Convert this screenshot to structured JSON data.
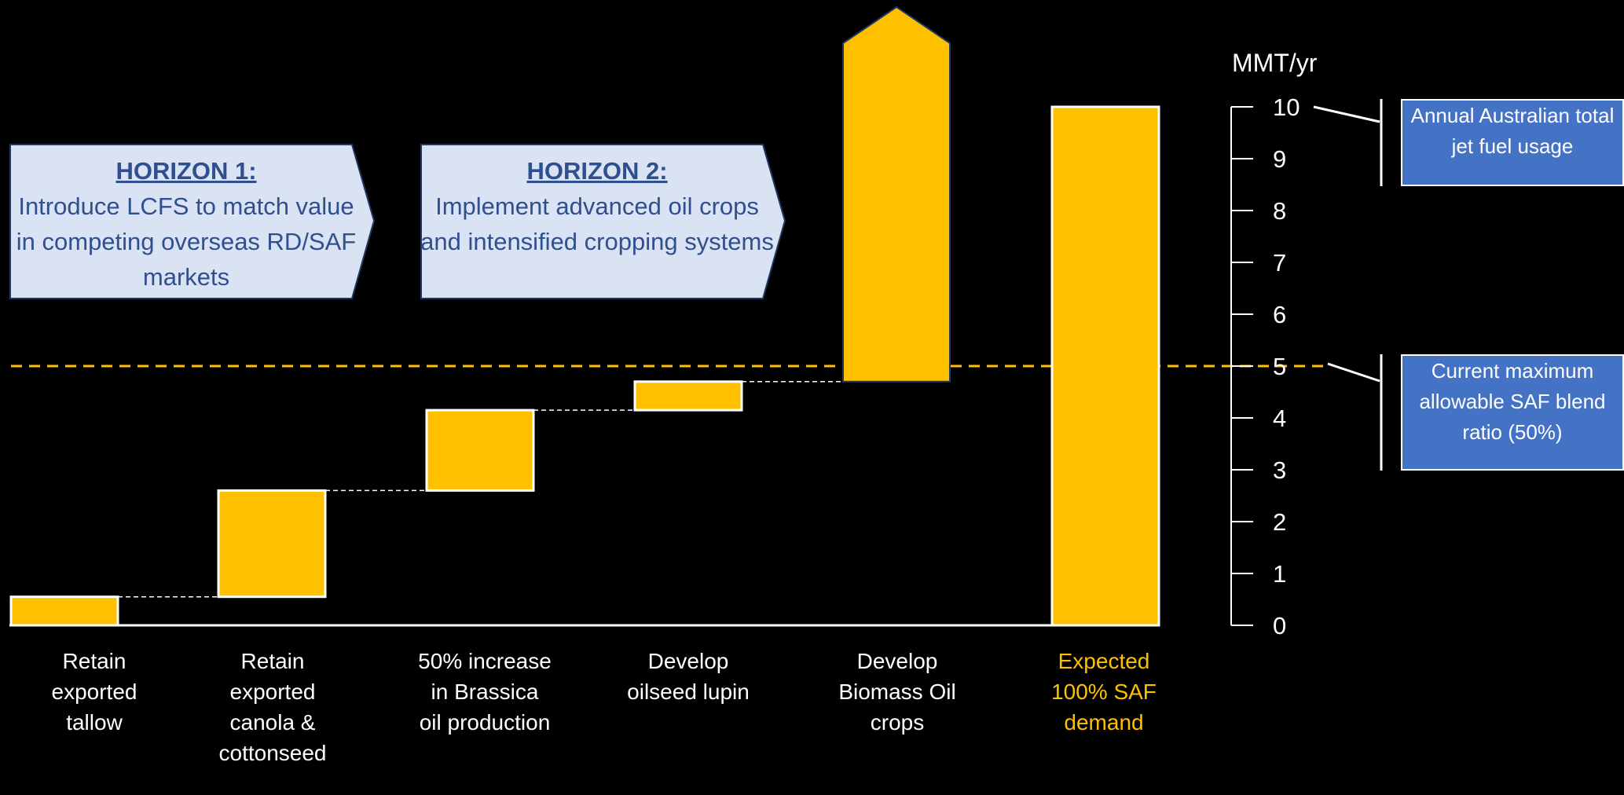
{
  "horizons": [
    {
      "title": "HORIZON 1:",
      "text": "Introduce LCFS to match value in competing overseas RD/SAF markets"
    },
    {
      "title": "HORIZON 2:",
      "text": "Implement advanced oil crops and intensified cropping systems"
    }
  ],
  "notes": {
    "jet_fuel": "Annual Australian total jet fuel usage",
    "blend": "Current maximum allowable SAF blend ratio (50%)"
  },
  "colors": {
    "bar": "#ffc000",
    "accent_text": "#ffc000",
    "note_bg": "#4472c4",
    "horizon_bg": "#dae3f3"
  },
  "chart_data": {
    "type": "bar",
    "subtype": "waterfall",
    "ylabel": "MMT/yr",
    "ylim": [
      0,
      10
    ],
    "yticks": [
      "0",
      "1",
      "2",
      "3",
      "4",
      "5",
      "6",
      "7",
      "8",
      "9",
      "10"
    ],
    "categories": [
      "Retain exported tallow",
      "Retain exported canola & cottonseed",
      "50% increase in Brassica oil production",
      "Develop oilseed lupin",
      "Develop Biomass Oil crops",
      "Expected 100% SAF demand"
    ],
    "segments": [
      {
        "start": 0,
        "end": 0.55
      },
      {
        "start": 0.55,
        "end": 2.6
      },
      {
        "start": 2.6,
        "end": 4.15
      },
      {
        "start": 4.15,
        "end": 4.7
      },
      {
        "start": 4.7,
        "end": 12,
        "arrow": true
      },
      {
        "start": 0,
        "end": 10,
        "total": true
      }
    ],
    "reference_line": {
      "value": 5,
      "style": "dashed"
    }
  }
}
